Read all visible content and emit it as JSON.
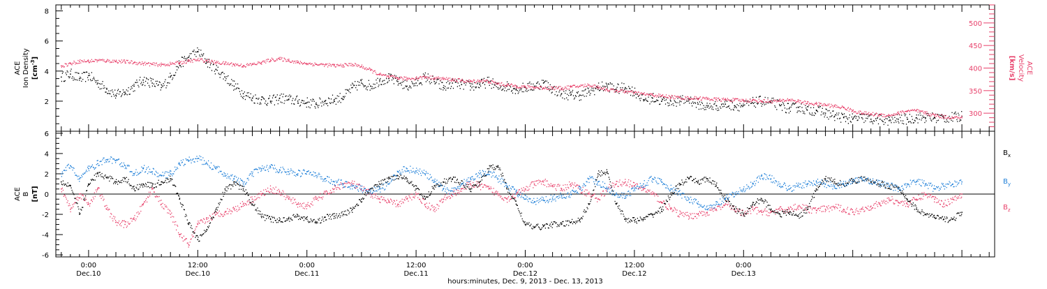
{
  "chart_data": [
    {
      "type": "scatter",
      "panel": "top",
      "left_axis": {
        "label_lines": [
          "ACE",
          "Ion Density"
        ],
        "unit_base": "[cm",
        "unit_sup": "-3",
        "unit_end": "]",
        "ylim": [
          0,
          8.4
        ],
        "ticks": [
          2,
          4,
          6,
          8
        ],
        "tick_labels": [
          "2",
          "4",
          "6",
          "8"
        ]
      },
      "right_axis": {
        "label_lines": [
          "ACE",
          "Velocity"
        ],
        "unit": "[km/s]",
        "ylim": [
          260,
          540
        ],
        "ticks": [
          300,
          350,
          400,
          450,
          500
        ],
        "tick_labels": [
          "300",
          "350",
          "400",
          "450",
          "500"
        ],
        "color": "#e8406a"
      },
      "series": [
        {
          "color": "#000000",
          "axis": "left",
          "style": "dots",
          "x": [
            -3,
            -2,
            -1,
            0,
            1,
            2,
            3,
            4,
            5,
            6,
            7,
            8,
            9,
            10,
            11,
            12,
            13,
            14,
            15,
            16,
            17,
            18,
            19,
            20,
            21,
            22,
            23,
            24,
            25,
            26,
            27,
            28,
            29,
            30,
            31,
            32,
            33,
            34,
            35,
            36,
            37,
            38,
            39,
            40,
            41,
            42,
            43,
            44,
            45,
            46,
            47,
            48,
            49,
            50,
            51,
            52,
            53,
            54,
            55,
            56,
            57,
            58,
            59,
            60,
            61,
            62,
            63,
            64,
            65,
            66,
            67,
            68,
            69,
            70,
            71,
            72,
            73,
            74,
            75,
            76,
            77,
            78,
            79,
            80,
            81,
            82,
            83,
            84,
            85,
            86,
            87,
            88,
            89,
            90,
            91,
            92,
            93,
            94,
            95,
            96
          ],
          "y": [
            3.6,
            3.8,
            3.5,
            3.7,
            3.2,
            2.8,
            2.4,
            2.6,
            3.0,
            3.4,
            3.2,
            2.9,
            3.6,
            4.5,
            4.9,
            5.3,
            4.6,
            4.1,
            3.6,
            3.0,
            2.5,
            2.2,
            2.1,
            2.0,
            2.2,
            2.1,
            2.0,
            1.9,
            1.8,
            2.0,
            2.1,
            2.3,
            2.9,
            3.2,
            3.0,
            3.4,
            3.5,
            3.3,
            3.0,
            3.2,
            3.6,
            3.3,
            2.9,
            3.2,
            3.1,
            3.0,
            3.1,
            3.3,
            2.9,
            3.0,
            2.8,
            2.9,
            3.0,
            3.2,
            2.8,
            2.5,
            2.4,
            2.4,
            2.6,
            2.9,
            3.0,
            2.8,
            2.9,
            2.6,
            2.1,
            2.2,
            2.0,
            2.0,
            2.0,
            2.1,
            1.8,
            1.6,
            1.7,
            1.8,
            1.7,
            1.7,
            1.9,
            2.0,
            1.9,
            1.7,
            1.5,
            1.6,
            1.4,
            1.4,
            1.2,
            1.0,
            0.9,
            0.8,
            0.9,
            0.8,
            0.8,
            0.7,
            0.8,
            0.8,
            0.9,
            0.9,
            0.9,
            0.9,
            0.9,
            1.0
          ]
        },
        {
          "color": "#e8406a",
          "axis": "right",
          "style": "dots",
          "x": [
            -3,
            -2,
            -1,
            0,
            1,
            2,
            3,
            4,
            5,
            6,
            7,
            8,
            9,
            10,
            11,
            12,
            13,
            14,
            15,
            16,
            17,
            18,
            19,
            20,
            21,
            22,
            23,
            24,
            25,
            26,
            27,
            28,
            29,
            30,
            31,
            32,
            33,
            34,
            35,
            36,
            37,
            38,
            39,
            40,
            41,
            42,
            43,
            44,
            45,
            46,
            47,
            48,
            49,
            50,
            51,
            52,
            53,
            54,
            55,
            56,
            57,
            58,
            59,
            60,
            61,
            62,
            63,
            64,
            65,
            66,
            67,
            68,
            69,
            70,
            71,
            72,
            73,
            74,
            75,
            76,
            77,
            78,
            79,
            80,
            81,
            82,
            83,
            84,
            85,
            86,
            87,
            88,
            89,
            90,
            91,
            92,
            93,
            94,
            95,
            96
          ],
          "y": [
            405,
            410,
            415,
            415,
            417,
            416,
            415,
            414,
            412,
            410,
            408,
            407,
            409,
            412,
            415,
            418,
            416,
            412,
            410,
            408,
            405,
            408,
            412,
            418,
            420,
            417,
            412,
            410,
            408,
            407,
            405,
            406,
            408,
            403,
            395,
            385,
            380,
            378,
            376,
            378,
            380,
            378,
            376,
            374,
            372,
            370,
            372,
            370,
            365,
            362,
            360,
            358,
            357,
            356,
            356,
            355,
            358,
            360,
            362,
            358,
            352,
            350,
            348,
            345,
            342,
            340,
            338,
            336,
            334,
            333,
            333,
            332,
            330,
            330,
            329,
            328,
            328,
            327,
            326,
            327,
            330,
            326,
            322,
            320,
            318,
            315,
            312,
            305,
            300,
            298,
            296,
            295,
            300,
            305,
            305,
            300,
            295,
            292,
            290,
            290
          ]
        }
      ],
      "legend_position": "none"
    },
    {
      "type": "scatter",
      "panel": "bottom",
      "left_axis": {
        "label_lines": [
          "ACE",
          "B"
        ],
        "unit": "[nT]",
        "ylim": [
          -6.2,
          6.2
        ],
        "ticks": [
          -6,
          -4,
          -2,
          0,
          2,
          4,
          6
        ],
        "tick_labels": [
          "-6",
          "-4",
          "-2",
          "0",
          "2",
          "4",
          "6"
        ]
      },
      "zero_line": true,
      "legend_position": "right",
      "series": [
        {
          "name": "B",
          "subscript": "x",
          "color": "#000000",
          "style": "dots",
          "x": [
            -3,
            -2,
            -1,
            0,
            1,
            2,
            3,
            4,
            5,
            6,
            7,
            8,
            9,
            10,
            11,
            12,
            13,
            14,
            15,
            16,
            17,
            18,
            19,
            20,
            21,
            22,
            23,
            24,
            25,
            26,
            27,
            28,
            29,
            30,
            31,
            32,
            33,
            34,
            35,
            36,
            37,
            38,
            39,
            40,
            41,
            42,
            43,
            44,
            45,
            46,
            47,
            48,
            49,
            50,
            51,
            52,
            53,
            54,
            55,
            56,
            57,
            58,
            59,
            60,
            61,
            62,
            63,
            64,
            65,
            66,
            67,
            68,
            69,
            70,
            71,
            72,
            73,
            74,
            75,
            76,
            77,
            78,
            79,
            80,
            81,
            82,
            83,
            84,
            85,
            86,
            87,
            88,
            89,
            90,
            91,
            92,
            93,
            94,
            95,
            96
          ],
          "y": [
            1.2,
            0.8,
            -2.0,
            1.0,
            2.0,
            1.6,
            1.2,
            1.5,
            0.5,
            1.0,
            0.8,
            1.2,
            1.5,
            -0.5,
            -3.0,
            -4.5,
            -3.5,
            -1.5,
            0.5,
            1.0,
            0.5,
            -1.0,
            -2.2,
            -2.5,
            -2.6,
            -2.4,
            -2.2,
            -2.5,
            -2.8,
            -2.3,
            -2.2,
            -2.0,
            -1.5,
            -0.5,
            0.5,
            1.0,
            1.5,
            1.8,
            1.5,
            0.5,
            -0.5,
            0.8,
            1.2,
            1.5,
            1.0,
            0.5,
            1.2,
            2.5,
            2.8,
            0.5,
            -1.0,
            -3.0,
            -3.3,
            -3.2,
            -3.0,
            -3.0,
            -2.8,
            -2.5,
            -1.0,
            2.0,
            2.2,
            -1.0,
            -2.5,
            -2.6,
            -2.5,
            -2.0,
            -1.5,
            0.0,
            1.0,
            1.5,
            1.2,
            1.5,
            0.8,
            -0.5,
            -1.5,
            -2.0,
            -1.0,
            -0.5,
            -1.5,
            -2.0,
            -1.8,
            -2.2,
            -1.5,
            0.5,
            1.5,
            1.2,
            1.0,
            1.3,
            1.5,
            1.2,
            1.0,
            0.8,
            0.5,
            -0.5,
            -1.5,
            -2.0,
            -2.3,
            -2.5,
            -2.5,
            -1.8
          ]
        },
        {
          "name": "B",
          "subscript": "y",
          "color": "#1e7fd8",
          "style": "dots",
          "x": [
            -3,
            -2,
            -1,
            0,
            1,
            2,
            3,
            4,
            5,
            6,
            7,
            8,
            9,
            10,
            11,
            12,
            13,
            14,
            15,
            16,
            17,
            18,
            19,
            20,
            21,
            22,
            23,
            24,
            25,
            26,
            27,
            28,
            29,
            30,
            31,
            32,
            33,
            34,
            35,
            36,
            37,
            38,
            39,
            40,
            41,
            42,
            43,
            44,
            45,
            46,
            47,
            48,
            49,
            50,
            51,
            52,
            53,
            54,
            55,
            56,
            57,
            58,
            59,
            60,
            61,
            62,
            63,
            64,
            65,
            66,
            67,
            68,
            69,
            70,
            71,
            72,
            73,
            74,
            75,
            76,
            77,
            78,
            79,
            80,
            81,
            82,
            83,
            84,
            85,
            86,
            87,
            88,
            89,
            90,
            91,
            92,
            93,
            94,
            95,
            96
          ],
          "y": [
            2.0,
            2.8,
            1.5,
            2.5,
            3.0,
            3.4,
            3.3,
            2.8,
            2.0,
            2.5,
            2.2,
            1.8,
            2.0,
            3.0,
            3.3,
            3.5,
            3.0,
            2.5,
            2.0,
            1.5,
            1.0,
            2.0,
            2.5,
            2.6,
            2.4,
            2.2,
            2.0,
            2.2,
            1.8,
            1.5,
            1.2,
            1.0,
            0.8,
            0.5,
            0.3,
            0.5,
            1.0,
            2.2,
            2.5,
            2.3,
            2.0,
            1.2,
            0.5,
            0.3,
            1.0,
            1.5,
            2.0,
            2.2,
            1.5,
            0.8,
            0.2,
            -0.5,
            -0.8,
            -0.6,
            -0.4,
            -0.2,
            0.0,
            0.5,
            1.5,
            1.2,
            0.5,
            0.0,
            -0.2,
            0.5,
            1.0,
            1.5,
            1.2,
            0.5,
            0.0,
            -0.5,
            -1.0,
            -1.5,
            -1.0,
            -0.5,
            0.0,
            0.5,
            1.0,
            1.8,
            1.5,
            1.0,
            0.5,
            0.8,
            1.0,
            1.2,
            1.0,
            0.8,
            1.0,
            1.2,
            1.5,
            1.3,
            1.0,
            0.8,
            0.5,
            1.0,
            1.2,
            1.0,
            0.5,
            0.8,
            1.0,
            1.2
          ]
        },
        {
          "name": "B",
          "subscript": "z",
          "color": "#e8406a",
          "style": "dots",
          "x": [
            -3,
            -2,
            -1,
            0,
            1,
            2,
            3,
            4,
            5,
            6,
            7,
            8,
            9,
            10,
            11,
            12,
            13,
            14,
            15,
            16,
            17,
            18,
            19,
            20,
            21,
            22,
            23,
            24,
            25,
            26,
            27,
            28,
            29,
            30,
            31,
            32,
            33,
            34,
            35,
            36,
            37,
            38,
            39,
            40,
            41,
            42,
            43,
            44,
            45,
            46,
            47,
            48,
            49,
            50,
            51,
            52,
            53,
            54,
            55,
            56,
            57,
            58,
            59,
            60,
            61,
            62,
            63,
            64,
            65,
            66,
            67,
            68,
            69,
            70,
            71,
            72,
            73,
            74,
            75,
            76,
            77,
            78,
            79,
            80,
            81,
            82,
            83,
            84,
            85,
            86,
            87,
            88,
            89,
            90,
            91,
            92,
            93,
            94,
            95,
            96
          ],
          "y": [
            0.5,
            -1.5,
            0.0,
            -1.0,
            0.5,
            -1.5,
            -2.8,
            -3.0,
            -2.5,
            -1.0,
            0.5,
            -1.0,
            -2.0,
            -4.0,
            -5.0,
            -3.0,
            -2.5,
            -2.0,
            -1.8,
            -1.5,
            -1.0,
            -0.5,
            0.0,
            0.5,
            0.2,
            -0.5,
            -1.0,
            -1.2,
            -0.5,
            0.0,
            0.5,
            1.0,
            1.0,
            0.5,
            0.0,
            -0.5,
            -0.8,
            -1.0,
            -0.5,
            0.0,
            -1.0,
            -1.5,
            -0.5,
            0.0,
            0.5,
            1.0,
            0.8,
            0.5,
            0.0,
            -0.5,
            0.0,
            0.5,
            1.0,
            1.2,
            0.8,
            0.5,
            1.0,
            0.5,
            0.0,
            -0.5,
            0.5,
            1.0,
            1.2,
            0.8,
            0.5,
            0.0,
            -0.8,
            -1.5,
            -2.0,
            -2.2,
            -2.0,
            -1.8,
            -1.5,
            -1.0,
            -1.5,
            -2.0,
            -1.5,
            -1.8,
            -1.8,
            -1.6,
            -1.5,
            -1.2,
            -1.5,
            -1.6,
            -1.5,
            -1.3,
            -1.5,
            -1.8,
            -1.5,
            -1.2,
            -1.0,
            -0.5,
            -0.8,
            -1.0,
            -0.5,
            0.0,
            -0.5,
            -1.0,
            -0.5,
            0.0
          ]
        }
      ],
      "x_axis": {
        "range_hours": [
          -3.6,
          99.6
        ],
        "major_ticks": [
          0,
          12,
          24,
          36,
          48,
          60,
          72,
          84
        ],
        "tick_labels": [
          "0:00",
          "12:00",
          "0:00",
          "12:00",
          "0:00",
          "12:00",
          "0:00",
          ""
        ],
        "tick_dates": [
          "Dec.10",
          "Dec.10",
          "Dec.11",
          "Dec.11",
          "Dec.12",
          "Dec.12",
          "Dec.13",
          ""
        ],
        "label": "hours:minutes, Dec. 9, 2013 - Dec. 13, 2013"
      }
    }
  ]
}
